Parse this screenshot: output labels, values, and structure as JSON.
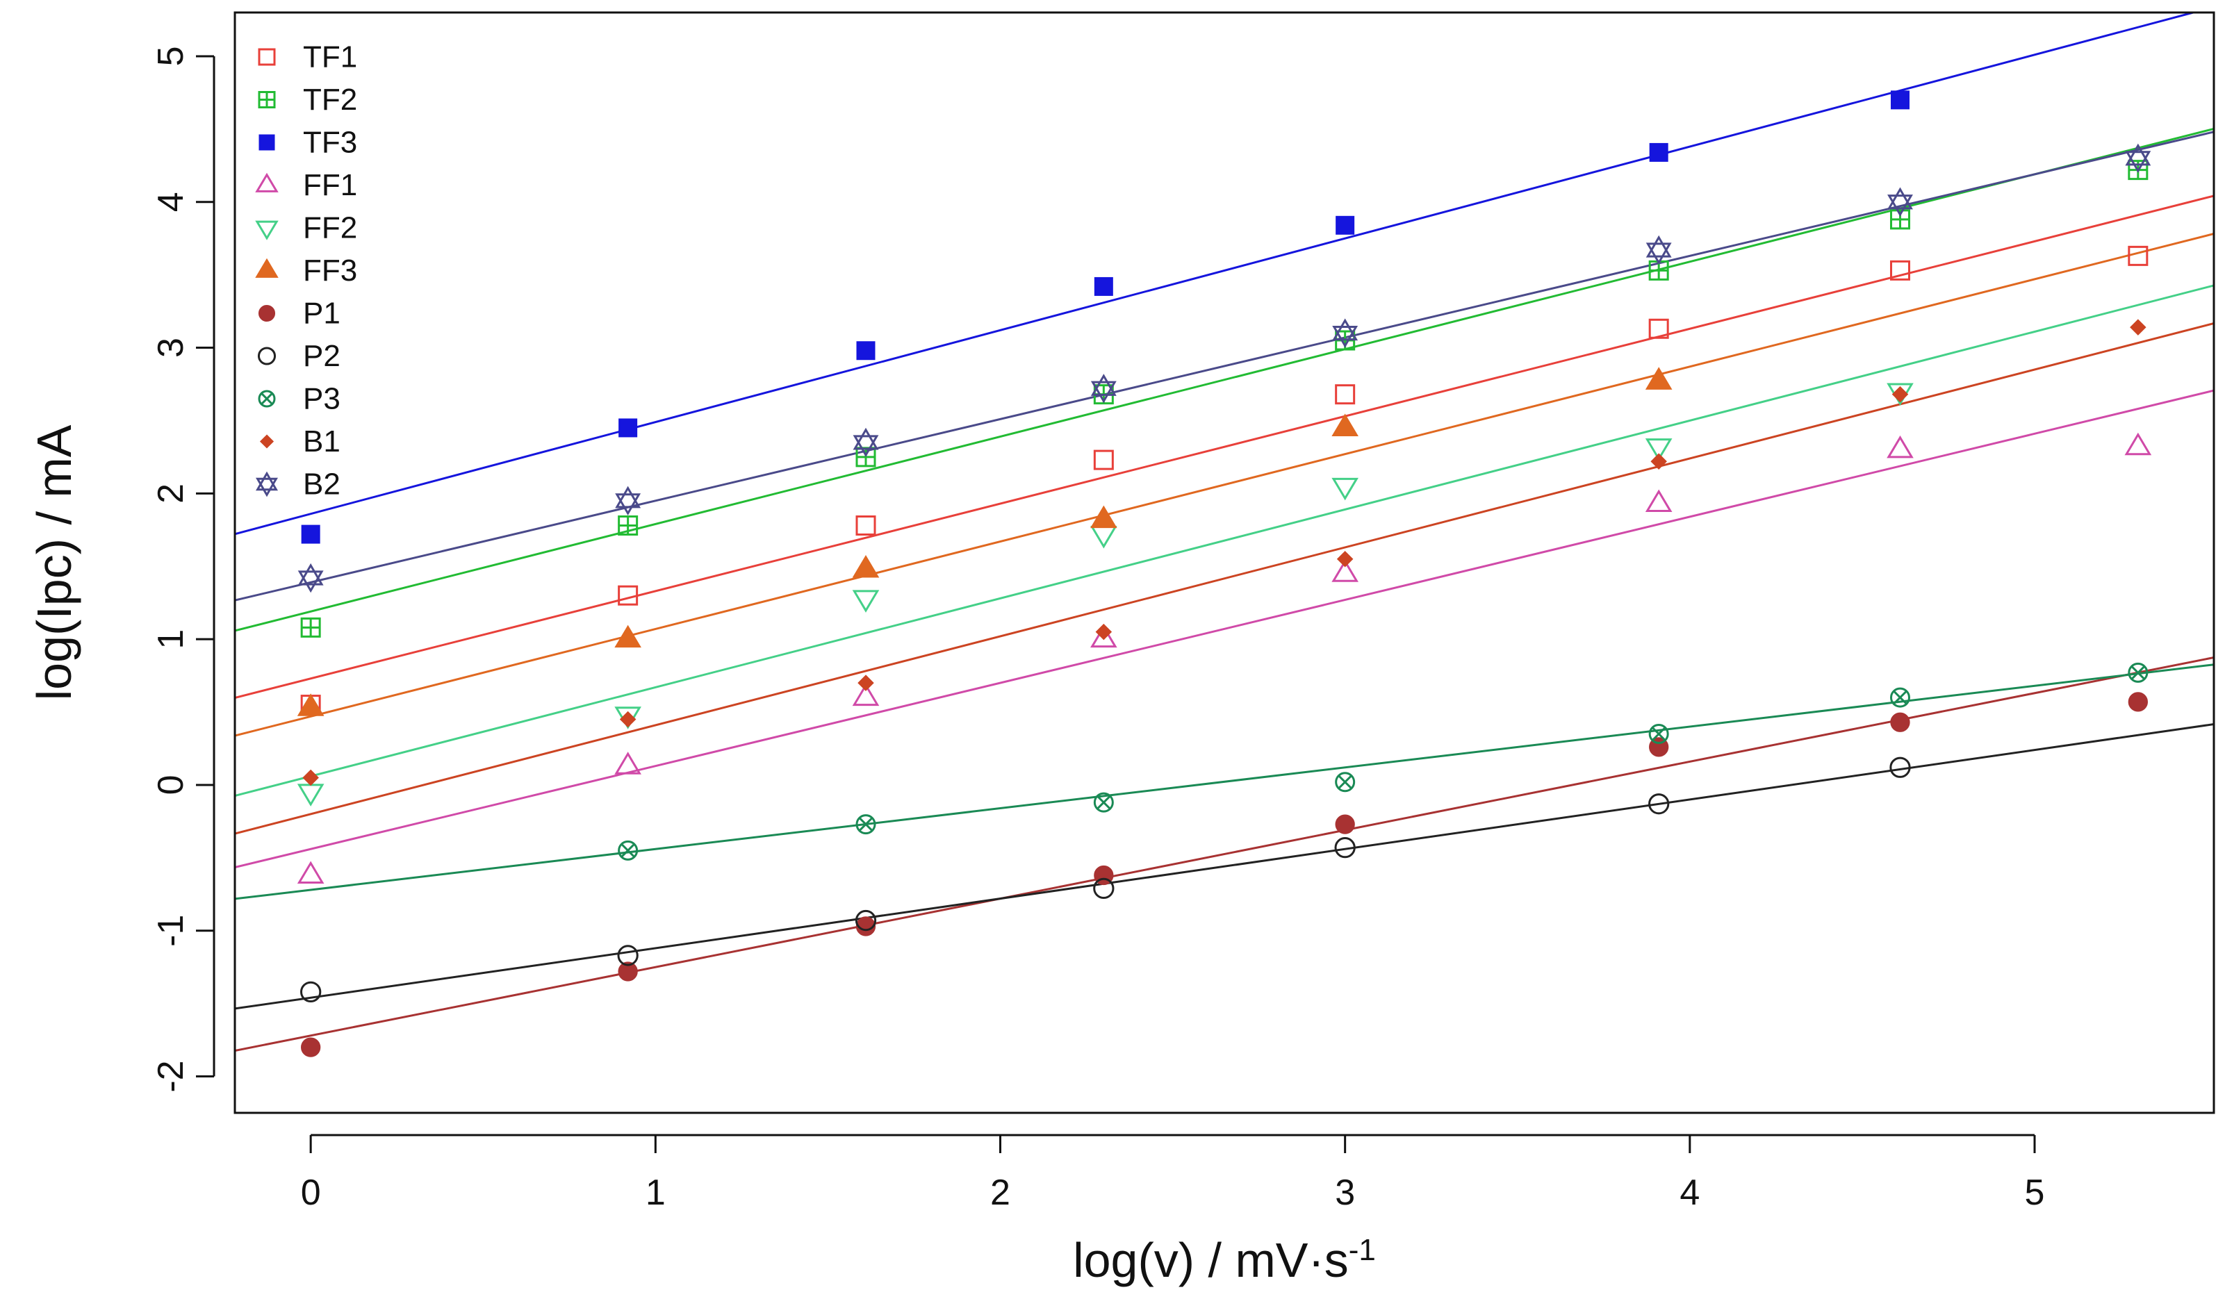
{
  "chart_data": {
    "type": "scatter",
    "title": "",
    "xlabel": "log(v) / mV·s",
    "xlabel_superscript": "-1",
    "ylabel": "log(Ipc) / mA",
    "xlim": [
      -0.22,
      5.52
    ],
    "ylim": [
      -2.25,
      5.3
    ],
    "xticks": [
      0,
      1,
      2,
      3,
      4,
      5
    ],
    "yticks": [
      -2,
      -1,
      0,
      1,
      2,
      3,
      4,
      5
    ],
    "xtick_labels": [
      "0",
      "1",
      "2",
      "3",
      "4",
      "5"
    ],
    "ytick_labels": [
      "-2",
      "-1",
      "0",
      "1",
      "2",
      "3",
      "4",
      "5"
    ],
    "legend_position": "top-left",
    "x": [
      0,
      0.92,
      1.61,
      2.3,
      3.0,
      3.91,
      4.61,
      5.3
    ],
    "series": [
      {
        "name": "TF1",
        "color": "#e8403a",
        "marker": "square-open",
        "values": [
          0.55,
          1.3,
          1.78,
          2.23,
          2.68,
          3.13,
          3.53,
          3.63
        ],
        "fit": [
          0.73,
          0.6
        ]
      },
      {
        "name": "TF2",
        "color": "#22bb33",
        "marker": "square-plus",
        "values": [
          1.08,
          1.78,
          2.25,
          2.68,
          3.05,
          3.53,
          3.88,
          4.22
        ],
        "fit": [
          1.19,
          0.6
        ]
      },
      {
        "name": "TF3",
        "color": "#1515dd",
        "marker": "square-filled",
        "values": [
          1.72,
          2.45,
          2.98,
          3.42,
          3.84,
          4.34,
          4.7,
          null
        ],
        "fit": [
          1.86,
          0.63
        ]
      },
      {
        "name": "FF1",
        "color": "#d04aa8",
        "marker": "triangle-up-open",
        "values": [
          -0.62,
          0.13,
          0.6,
          1.0,
          1.45,
          1.93,
          2.3,
          2.32
        ],
        "fit": [
          -0.44,
          0.57
        ]
      },
      {
        "name": "FF2",
        "color": "#44d088",
        "marker": "triangle-down-open",
        "values": [
          -0.05,
          0.48,
          1.28,
          1.72,
          2.05,
          2.32,
          2.7,
          null
        ],
        "fit": [
          0.06,
          0.61
        ]
      },
      {
        "name": "FF3",
        "color": "#e06820",
        "marker": "triangle-up-filled",
        "values": [
          0.53,
          1.0,
          1.48,
          1.82,
          2.45,
          2.77,
          null,
          null
        ],
        "fit": [
          0.47,
          0.6
        ]
      },
      {
        "name": "P1",
        "color": "#a83232",
        "marker": "circle-filled",
        "values": [
          -1.8,
          -1.28,
          -0.97,
          -0.62,
          -0.27,
          0.26,
          0.43,
          0.57
        ],
        "fit": [
          -1.72,
          0.47
        ]
      },
      {
        "name": "P2",
        "color": "#222222",
        "marker": "circle-open",
        "values": [
          -1.42,
          -1.17,
          -0.93,
          -0.71,
          -0.43,
          -0.13,
          0.12,
          null
        ],
        "fit": [
          -1.46,
          0.34
        ]
      },
      {
        "name": "P3",
        "color": "#1a8a55",
        "marker": "circle-x",
        "values": [
          null,
          -0.45,
          -0.27,
          -0.12,
          0.02,
          0.35,
          0.6,
          0.77
        ],
        "fit": [
          -0.72,
          0.28
        ]
      },
      {
        "name": "B1",
        "color": "#cc4422",
        "marker": "diamond-filled",
        "values": [
          0.05,
          0.45,
          0.7,
          1.05,
          1.55,
          2.22,
          2.68,
          3.14
        ],
        "fit": [
          -0.2,
          0.61
        ]
      },
      {
        "name": "B2",
        "color": "#4a4a8a",
        "marker": "star-of-david",
        "values": [
          1.42,
          1.95,
          2.35,
          2.72,
          3.1,
          3.67,
          4.0,
          4.3
        ],
        "fit": [
          1.39,
          0.56
        ]
      }
    ]
  }
}
